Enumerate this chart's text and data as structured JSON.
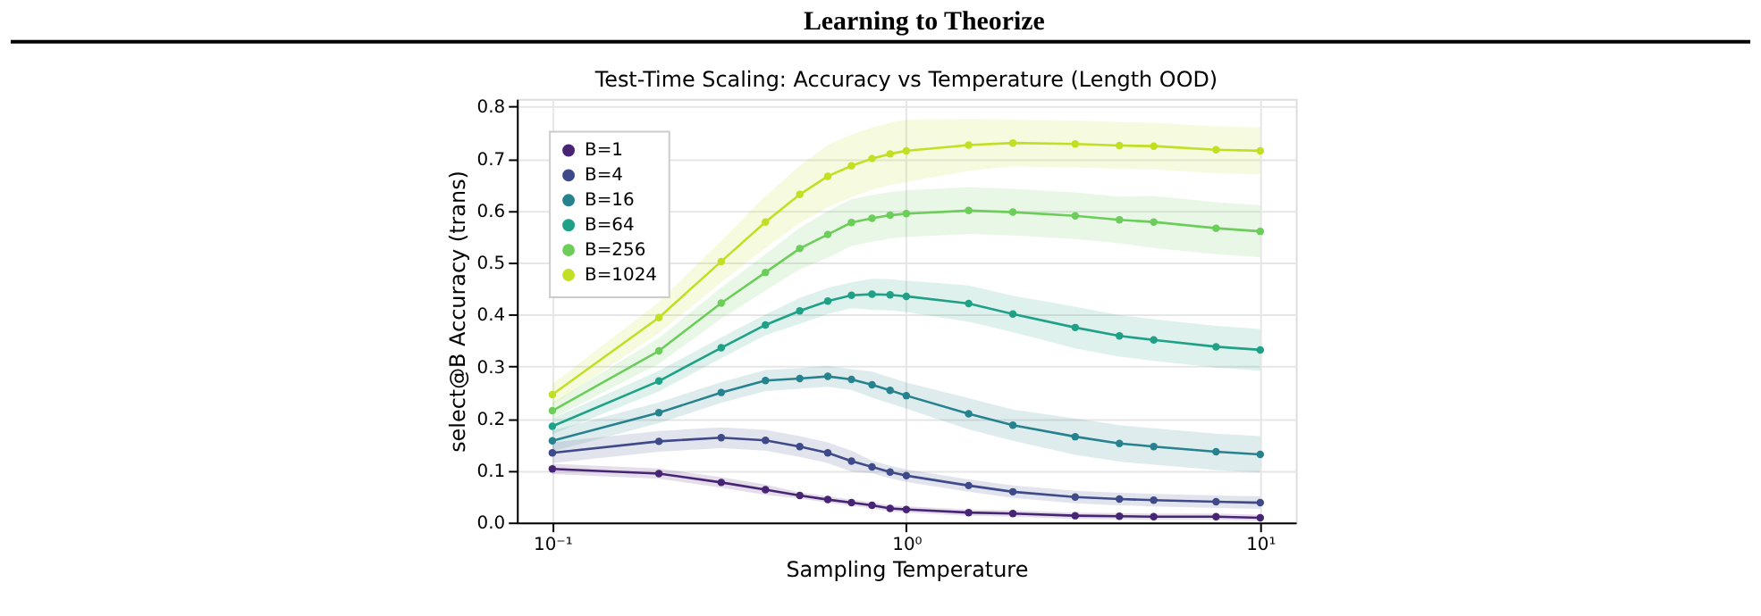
{
  "chart_data": {
    "type": "line",
    "title": "Test-Time Scaling: Accuracy vs Temperature (Length OOD)",
    "xlabel": "Sampling Temperature",
    "ylabel": "select@B Accuracy (trans)",
    "annotations": [
      "Learning to Theorize"
    ],
    "x": [
      0.1,
      0.2,
      0.3,
      0.4,
      0.5,
      0.6,
      0.7,
      0.8,
      0.9,
      1.0,
      1.5,
      2,
      3,
      4,
      5,
      7.5,
      10
    ],
    "log": "x",
    "xlim": [
      0.0794,
      12.6
    ],
    "xticks": [
      {
        "value": 0.1,
        "label": "10⁻¹"
      },
      {
        "value": 1,
        "label": "10⁰"
      },
      {
        "value": 10,
        "label": "10¹"
      }
    ],
    "ylim": [
      0,
      0.815
    ],
    "yticks": [
      {
        "value": 0,
        "label": "0.0"
      },
      {
        "value": 0.1,
        "label": "0.1"
      },
      {
        "value": 0.2,
        "label": "0.2"
      },
      {
        "value": 0.3,
        "label": "0.3"
      },
      {
        "value": 0.4,
        "label": "0.4"
      },
      {
        "value": 0.5,
        "label": "0.5"
      },
      {
        "value": 0.6,
        "label": "0.6"
      },
      {
        "value": 0.7,
        "label": "0.7"
      },
      {
        "value": 0.8,
        "label": "0.8"
      }
    ],
    "grid": true,
    "legend": "top left",
    "marker": "circle",
    "line_style": "solid",
    "series": [
      {
        "name": "B=1",
        "color": "#482475",
        "values": [
          0.103,
          0.094,
          0.077,
          0.063,
          0.052,
          0.044,
          0.038,
          0.033,
          0.027,
          0.025,
          0.019,
          0.017,
          0.013,
          0.012,
          0.011,
          0.011,
          0.009
        ],
        "lower": [
          0.093,
          0.084,
          0.067,
          0.053,
          0.046,
          0.038,
          0.032,
          0.027,
          0.021,
          0.019,
          0.013,
          0.011,
          0.007,
          0.006,
          0.005,
          0.005,
          0.003
        ],
        "upper": [
          0.113,
          0.104,
          0.087,
          0.073,
          0.058,
          0.05,
          0.044,
          0.039,
          0.033,
          0.031,
          0.025,
          0.023,
          0.019,
          0.018,
          0.017,
          0.017,
          0.015
        ]
      },
      {
        "name": "B=4",
        "color": "#3e4a89",
        "values": [
          0.134,
          0.156,
          0.163,
          0.158,
          0.146,
          0.134,
          0.118,
          0.107,
          0.097,
          0.09,
          0.071,
          0.059,
          0.049,
          0.045,
          0.043,
          0.04,
          0.038
        ],
        "lower": [
          0.114,
          0.136,
          0.143,
          0.138,
          0.126,
          0.114,
          0.098,
          0.095,
          0.085,
          0.078,
          0.059,
          0.047,
          0.037,
          0.033,
          0.031,
          0.028,
          0.026
        ],
        "upper": [
          0.154,
          0.176,
          0.183,
          0.178,
          0.166,
          0.154,
          0.138,
          0.119,
          0.109,
          0.102,
          0.083,
          0.071,
          0.061,
          0.057,
          0.055,
          0.052,
          0.05
        ]
      },
      {
        "name": "B=16",
        "color": "#26828e",
        "values": [
          0.157,
          0.211,
          0.25,
          0.273,
          0.277,
          0.281,
          0.275,
          0.265,
          0.254,
          0.244,
          0.209,
          0.187,
          0.165,
          0.152,
          0.146,
          0.136,
          0.131
        ],
        "lower": [
          0.137,
          0.191,
          0.23,
          0.253,
          0.257,
          0.261,
          0.255,
          0.24,
          0.229,
          0.219,
          0.179,
          0.157,
          0.13,
          0.117,
          0.111,
          0.101,
          0.096
        ],
        "upper": [
          0.177,
          0.231,
          0.27,
          0.293,
          0.297,
          0.301,
          0.295,
          0.29,
          0.279,
          0.269,
          0.239,
          0.217,
          0.2,
          0.187,
          0.181,
          0.171,
          0.166
        ]
      },
      {
        "name": "B=64",
        "color": "#1fa187",
        "values": [
          0.185,
          0.272,
          0.336,
          0.38,
          0.407,
          0.426,
          0.437,
          0.439,
          0.438,
          0.435,
          0.421,
          0.401,
          0.375,
          0.359,
          0.351,
          0.338,
          0.332
        ],
        "lower": [
          0.17,
          0.252,
          0.316,
          0.36,
          0.382,
          0.401,
          0.412,
          0.409,
          0.408,
          0.405,
          0.386,
          0.366,
          0.335,
          0.319,
          0.311,
          0.298,
          0.292
        ],
        "upper": [
          0.2,
          0.292,
          0.356,
          0.4,
          0.432,
          0.451,
          0.462,
          0.469,
          0.468,
          0.465,
          0.456,
          0.436,
          0.415,
          0.399,
          0.391,
          0.378,
          0.372
        ]
      },
      {
        "name": "B=256",
        "color": "#6ccd5a",
        "values": [
          0.215,
          0.33,
          0.422,
          0.481,
          0.527,
          0.554,
          0.577,
          0.585,
          0.591,
          0.594,
          0.6,
          0.597,
          0.59,
          0.582,
          0.578,
          0.566,
          0.56
        ],
        "lower": [
          0.2,
          0.305,
          0.392,
          0.446,
          0.487,
          0.509,
          0.532,
          0.54,
          0.546,
          0.549,
          0.555,
          0.552,
          0.545,
          0.537,
          0.528,
          0.516,
          0.51
        ],
        "upper": [
          0.23,
          0.355,
          0.452,
          0.516,
          0.567,
          0.599,
          0.622,
          0.63,
          0.636,
          0.639,
          0.645,
          0.642,
          0.635,
          0.627,
          0.628,
          0.616,
          0.61
        ]
      },
      {
        "name": "B=1024",
        "color": "#c2df23",
        "values": [
          0.246,
          0.394,
          0.502,
          0.578,
          0.631,
          0.666,
          0.686,
          0.7,
          0.709,
          0.715,
          0.726,
          0.73,
          0.728,
          0.725,
          0.724,
          0.717,
          0.715
        ],
        "lower": [
          0.226,
          0.364,
          0.462,
          0.528,
          0.576,
          0.606,
          0.626,
          0.64,
          0.649,
          0.655,
          0.676,
          0.685,
          0.683,
          0.68,
          0.679,
          0.672,
          0.67
        ],
        "upper": [
          0.266,
          0.424,
          0.542,
          0.628,
          0.686,
          0.726,
          0.746,
          0.76,
          0.769,
          0.775,
          0.776,
          0.775,
          0.773,
          0.77,
          0.769,
          0.762,
          0.76
        ]
      }
    ]
  }
}
